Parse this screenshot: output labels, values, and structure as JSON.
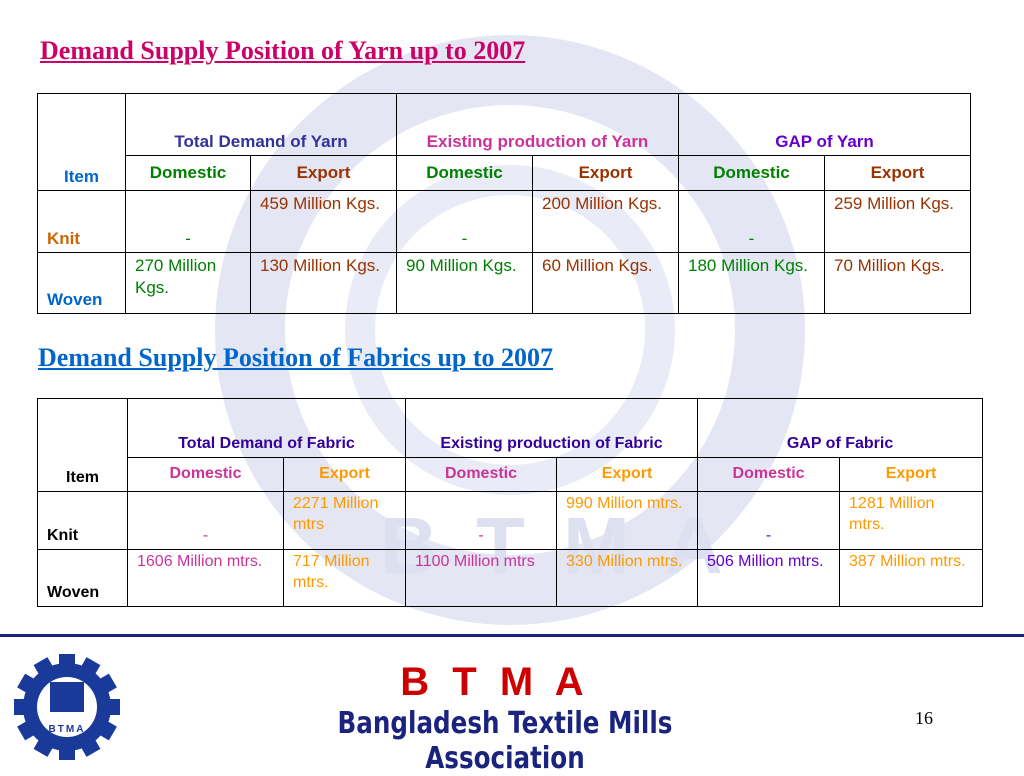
{
  "tables": [
    {
      "title": "Demand Supply Position of Yarn up to 2007",
      "item_header": "Item",
      "groups": [
        "Total Demand of Yarn",
        "Existing production of Yarn",
        "GAP of Yarn"
      ],
      "subheaders": [
        "Domestic",
        "Export",
        "Domestic",
        "Export",
        "Domestic",
        "Export"
      ],
      "rows": [
        {
          "label": "Knit",
          "cells": [
            "-",
            "459 Million Kgs.",
            "-",
            "200 Million Kgs.",
            "-",
            "259 Million Kgs."
          ]
        },
        {
          "label": "Woven",
          "cells": [
            "270 Million Kgs.",
            "130 Million Kgs.",
            "90 Million Kgs.",
            "60 Million Kgs.",
            "180 Million Kgs.",
            "70 Million Kgs."
          ]
        }
      ]
    },
    {
      "title": "Demand Supply Position of Fabrics up to 2007",
      "item_header": "Item",
      "groups": [
        "Total Demand of Fabric",
        "Existing production of Fabric",
        "GAP of Fabric"
      ],
      "subheaders": [
        "Domestic",
        "Export",
        "Domestic",
        "Export",
        "Domestic",
        "Export"
      ],
      "rows": [
        {
          "label": "Knit",
          "cells": [
            "-",
            "2271 Million mtrs",
            "-",
            "990 Million mtrs.",
            "-",
            "1281 Million mtrs."
          ]
        },
        {
          "label": "Woven",
          "cells": [
            "1606 Million mtrs.",
            "717 Million mtrs.",
            "1100 Million mtrs",
            "330 Million mtrs.",
            "506 Million mtrs.",
            "387 Million mtrs."
          ]
        }
      ]
    }
  ],
  "watermark": "B T M A",
  "footer": {
    "acronym": "B T M A",
    "name": "Bangladesh Textile Mills Association",
    "page": "16",
    "logo_text": "BTMA"
  }
}
